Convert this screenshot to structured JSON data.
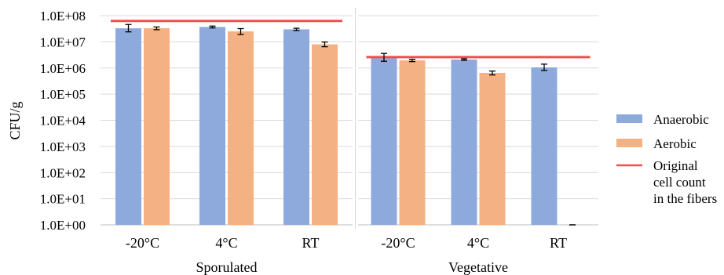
{
  "chart_data": {
    "type": "bar",
    "log_scale": true,
    "ylabel": "CFU/g",
    "ylim": [
      1,
      100000000
    ],
    "y_ticks": [
      {
        "value": 1,
        "label": "1.0E+00"
      },
      {
        "value": 10,
        "label": "1.0E+01"
      },
      {
        "value": 100,
        "label": "1.0E+02"
      },
      {
        "value": 1000,
        "label": "1.0E+03"
      },
      {
        "value": 10000,
        "label": "1.0E+04"
      },
      {
        "value": 100000,
        "label": "1.0E+05"
      },
      {
        "value": 1000000,
        "label": "1.0E+06"
      },
      {
        "value": 10000000,
        "label": "1.0E+07"
      },
      {
        "value": 100000000,
        "label": "1.0E+08"
      }
    ],
    "grid": true,
    "legend_position": "right",
    "legend": [
      {
        "key": "anaerobic",
        "label": "Anaerobic",
        "color": "#8eaadc",
        "kind": "bar"
      },
      {
        "key": "aerobic",
        "label": "Aerobic",
        "color": "#f4b183",
        "kind": "bar"
      },
      {
        "key": "original",
        "label_lines": [
          "Original",
          "cell count",
          "in the fibers"
        ],
        "color": "#f04e4e",
        "kind": "line"
      }
    ],
    "groups": [
      {
        "name": "Sporulated",
        "categories": [
          "-20°C",
          "4°C",
          "RT"
        ],
        "series": [
          {
            "key": "anaerobic",
            "values": [
              33000000,
              37000000,
              30000000
            ],
            "error_low": [
              24000000,
              34000000,
              27000000
            ],
            "error_high": [
              46000000,
              40000000,
              33000000
            ]
          },
          {
            "key": "aerobic",
            "values": [
              33000000,
              25000000,
              8000000
            ],
            "error_low": [
              29000000,
              19000000,
              6500000
            ],
            "error_high": [
              37000000,
              32000000,
              9800000
            ]
          }
        ],
        "reference_line": 63000000
      },
      {
        "name": "Vegetative",
        "categories": [
          "-20°C",
          "4°C",
          "RT"
        ],
        "series": [
          {
            "key": "anaerobic",
            "values": [
              2500000,
              2100000,
              1050000
            ],
            "error_low": [
              1800000,
              1950000,
              800000
            ],
            "error_high": [
              3600000,
              2250000,
              1400000
            ]
          },
          {
            "key": "aerobic",
            "values": [
              1950000,
              650000,
              1
            ],
            "error_low": [
              1750000,
              540000,
              1
            ],
            "error_high": [
              2150000,
              760000,
              1
            ]
          }
        ],
        "reference_line": 2600000
      }
    ]
  }
}
